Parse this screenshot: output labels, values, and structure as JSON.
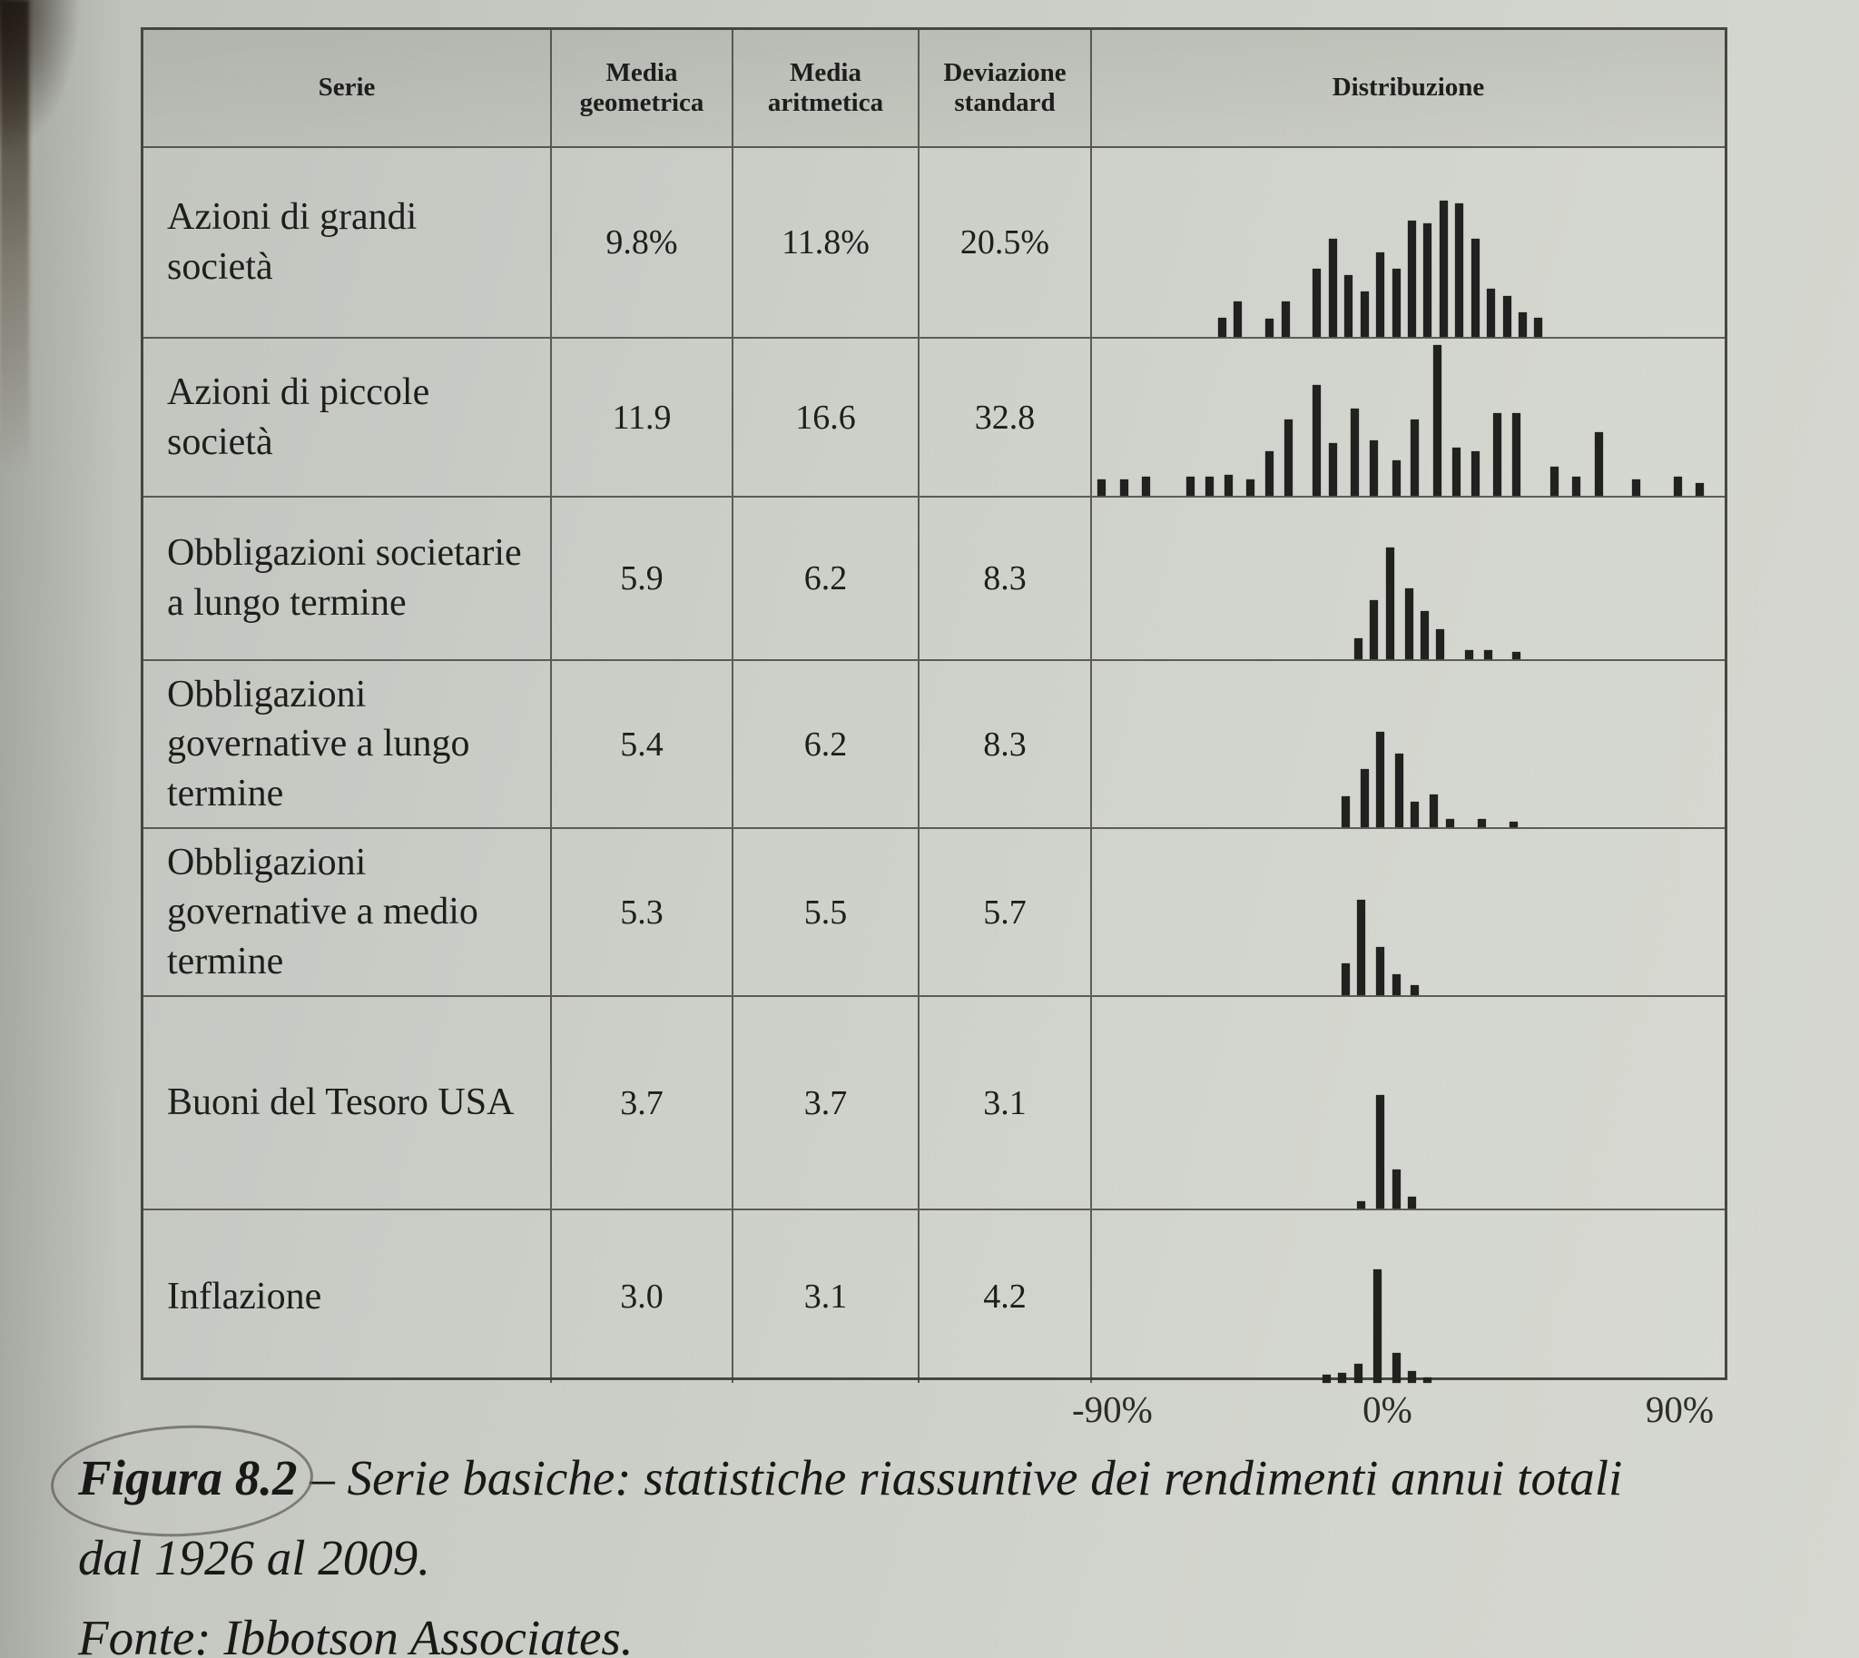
{
  "table": {
    "headers": [
      "Serie",
      "Media geometrica",
      "Media aritmetica",
      "Deviazione standard",
      "Distribuzione"
    ],
    "rows": [
      {
        "serie": "Azioni di grandi società",
        "media_geometrica": "9.8%",
        "media_aritmetica": "11.8%",
        "deviazione_standard": "20.5%"
      },
      {
        "serie": "Azioni di piccole società",
        "media_geometrica": "11.9",
        "media_aritmetica": "16.6",
        "deviazione_standard": "32.8"
      },
      {
        "serie": "Obbligazioni societarie a lungo termine",
        "media_geometrica": "5.9",
        "media_aritmetica": "6.2",
        "deviazione_standard": "8.3"
      },
      {
        "serie": "Obbligazioni governative a lungo termine",
        "media_geometrica": "5.4",
        "media_aritmetica": "6.2",
        "deviazione_standard": "8.3"
      },
      {
        "serie": "Obbligazioni governative a medio termine",
        "media_geometrica": "5.3",
        "media_aritmetica": "5.5",
        "deviazione_standard": "5.7"
      },
      {
        "serie": "Buoni del Tesoro USA",
        "media_geometrica": "3.7",
        "media_aritmetica": "3.7",
        "deviazione_standard": "3.1"
      },
      {
        "serie": "Inflazione",
        "media_geometrica": "3.0",
        "media_aritmetica": "3.1",
        "deviazione_standard": "4.2"
      }
    ]
  },
  "axis": {
    "ticks": [
      "-90%",
      "0%",
      "90%"
    ]
  },
  "caption": {
    "figure_label": "Figura 8.2",
    "line1": "– Serie basiche: statistiche riassuntive dei rendimenti annui totali",
    "line2": "dal 1926 al 2009.",
    "source": "Fonte: Ibbotson Associates."
  },
  "colors": {
    "paper": "#c8ccc4",
    "ink": "#1e1e1c",
    "table_line": "#4e4e46",
    "bar": "#21211f"
  },
  "chart_data": {
    "type": "bar",
    "title": "Figura 8.2 – Serie basiche: statistiche riassuntive dei rendimenti annui totali dal 1926 al 2009",
    "source": "Ibbotson Associates",
    "xlabel": "",
    "ylabel": "",
    "x_ticks": [
      "-90%",
      "0%",
      "90%"
    ],
    "x_range_percent": [
      -100,
      110
    ],
    "bin_width_percent": 5,
    "h_unit": "relative height 0-1 of each row's tallest bar",
    "series": [
      {
        "name": "Azioni di grandi società",
        "bins": [
          [
            -52,
            0.14
          ],
          [
            -47,
            0.26
          ],
          [
            -37,
            0.13
          ],
          [
            -32,
            0.26
          ],
          [
            -22,
            0.5
          ],
          [
            -17,
            0.72
          ],
          [
            -12,
            0.45
          ],
          [
            -7,
            0.33
          ],
          [
            -2,
            0.62
          ],
          [
            3,
            0.5
          ],
          [
            8,
            0.85
          ],
          [
            13,
            0.83
          ],
          [
            18,
            1.0
          ],
          [
            23,
            0.98
          ],
          [
            28,
            0.72
          ],
          [
            33,
            0.35
          ],
          [
            38,
            0.3
          ],
          [
            43,
            0.18
          ],
          [
            48,
            0.14
          ]
        ]
      },
      {
        "name": "Azioni di piccole società",
        "bins": [
          [
            -90,
            0.1
          ],
          [
            -83,
            0.1
          ],
          [
            -76,
            0.12
          ],
          [
            -62,
            0.12
          ],
          [
            -56,
            0.12
          ],
          [
            -50,
            0.13
          ],
          [
            -43,
            0.1
          ],
          [
            -37,
            0.28
          ],
          [
            -31,
            0.48
          ],
          [
            -22,
            0.7
          ],
          [
            -17,
            0.33
          ],
          [
            -10,
            0.55
          ],
          [
            -4,
            0.35
          ],
          [
            3,
            0.22
          ],
          [
            9,
            0.48
          ],
          [
            16,
            0.95
          ],
          [
            22,
            0.3
          ],
          [
            28,
            0.28
          ],
          [
            35,
            0.52
          ],
          [
            41,
            0.52
          ],
          [
            53,
            0.18
          ],
          [
            60,
            0.12
          ],
          [
            67,
            0.4
          ],
          [
            79,
            0.1
          ],
          [
            92,
            0.12
          ],
          [
            99,
            0.08
          ]
        ]
      },
      {
        "name": "Obbligazioni societarie a lungo termine",
        "bins": [
          [
            -9,
            0.18
          ],
          [
            -4,
            0.52
          ],
          [
            1,
            0.98
          ],
          [
            7,
            0.62
          ],
          [
            12,
            0.42
          ],
          [
            17,
            0.26
          ],
          [
            26,
            0.08
          ],
          [
            32,
            0.08
          ],
          [
            41,
            0.06
          ]
        ]
      },
      {
        "name": "Obbligazioni governative a lungo termine",
        "bins": [
          [
            -13,
            0.31
          ],
          [
            -7,
            0.58
          ],
          [
            -2,
            0.95
          ],
          [
            4,
            0.74
          ],
          [
            9,
            0.25
          ],
          [
            15,
            0.33
          ],
          [
            20,
            0.08
          ],
          [
            30,
            0.08
          ],
          [
            40,
            0.05
          ]
        ]
      },
      {
        "name": "Obbligazioni governative a medio termine",
        "bins": [
          [
            -13,
            0.33
          ],
          [
            -8,
            1.0
          ],
          [
            -2,
            0.5
          ],
          [
            3,
            0.22
          ],
          [
            9,
            0.1
          ]
        ]
      },
      {
        "name": "Buoni del Tesoro USA",
        "bins": [
          [
            -8,
            0.06
          ],
          [
            -2,
            1.0
          ],
          [
            3,
            0.34
          ],
          [
            8,
            0.1
          ]
        ]
      },
      {
        "name": "Inflazione",
        "bins": [
          [
            -19,
            0.07
          ],
          [
            -14,
            0.09
          ],
          [
            -9,
            0.17
          ],
          [
            -3,
            1.0
          ],
          [
            3,
            0.26
          ],
          [
            8,
            0.1
          ],
          [
            13,
            0.05
          ]
        ]
      }
    ]
  }
}
